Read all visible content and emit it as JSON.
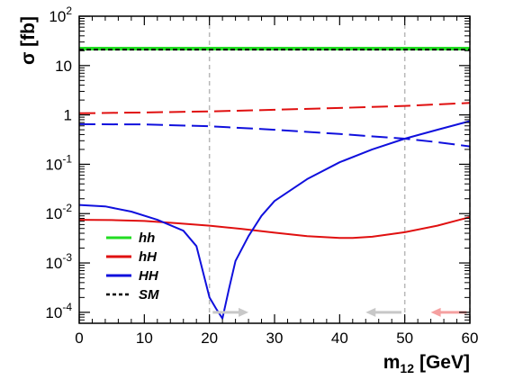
{
  "chart_data": {
    "type": "line",
    "xlabel": "m",
    "xlabel_sub": "12",
    "xlabel_unit": "[GeV]",
    "ylabel": "σ [fb]",
    "xlim": [
      0,
      60
    ],
    "ylim": [
      6e-05,
      100
    ],
    "yscale": "log",
    "x_ticks": [
      0,
      10,
      20,
      30,
      40,
      50,
      60
    ],
    "y_ticks": [
      {
        "value": 0.0001,
        "base": "10",
        "exp": "-4"
      },
      {
        "value": 0.001,
        "base": "10",
        "exp": "-3"
      },
      {
        "value": 0.01,
        "base": "10",
        "exp": "-2"
      },
      {
        "value": 0.1,
        "base": "10",
        "exp": "-1"
      },
      {
        "value": 1,
        "base": "1",
        "exp": ""
      },
      {
        "value": 10,
        "base": "10",
        "exp": ""
      },
      {
        "value": 100,
        "base": "10",
        "exp": "2"
      }
    ],
    "vertical_lines": [
      20,
      50,
      60
    ],
    "arrows": [
      {
        "x_from": 20.5,
        "x_to": 26,
        "y": 0.0001,
        "color": "#c8c8c8"
      },
      {
        "x_from": 49.5,
        "x_to": 44,
        "y": 0.0001,
        "color": "#c8c8c8"
      },
      {
        "x_from": 59.5,
        "x_to": 54,
        "y": 0.0001,
        "color": "#f5a0a0"
      }
    ],
    "legend_position": "bottom-left",
    "series": [
      {
        "name": "hh",
        "color": "#22dd22",
        "dash": "solid",
        "width": 4,
        "x": [
          0,
          60
        ],
        "y": [
          22,
          22
        ]
      },
      {
        "name": "hH",
        "color": "#e01010",
        "dash": "solid",
        "width": 2,
        "x": [
          0,
          5,
          10,
          15,
          20,
          25,
          30,
          35,
          40,
          42,
          45,
          50,
          55,
          60
        ],
        "y": [
          0.0075,
          0.0074,
          0.0071,
          0.0064,
          0.0057,
          0.0049,
          0.0041,
          0.0035,
          0.0032,
          0.0032,
          0.0034,
          0.0042,
          0.0057,
          0.0085
        ]
      },
      {
        "name": "hH",
        "color": "#e01010",
        "dash": "dashed",
        "width": 2,
        "x": [
          0,
          10,
          20,
          30,
          40,
          50,
          60
        ],
        "y": [
          1.08,
          1.12,
          1.18,
          1.27,
          1.38,
          1.52,
          1.75
        ]
      },
      {
        "name": "HH",
        "color": "#1010dd",
        "dash": "solid",
        "width": 2,
        "x": [
          0,
          4,
          8,
          12,
          16,
          18,
          20,
          21,
          22,
          23,
          24,
          26,
          28,
          30,
          35,
          40,
          45,
          50,
          55,
          60
        ],
        "y": [
          0.015,
          0.014,
          0.011,
          0.0075,
          0.0045,
          0.0022,
          0.0002,
          0.00012,
          7.5e-05,
          0.0003,
          0.0011,
          0.0035,
          0.009,
          0.018,
          0.05,
          0.11,
          0.2,
          0.33,
          0.5,
          0.75
        ]
      },
      {
        "name": "HH",
        "color": "#1010dd",
        "dash": "dashed",
        "width": 2,
        "x": [
          0,
          10,
          20,
          30,
          40,
          50,
          55,
          60
        ],
        "y": [
          0.65,
          0.64,
          0.59,
          0.5,
          0.41,
          0.33,
          0.28,
          0.23
        ]
      },
      {
        "name": "SM",
        "color": "#000000",
        "dash": "dotted",
        "width": 2,
        "x": [
          0,
          60
        ],
        "y": [
          21,
          21
        ]
      }
    ],
    "legend": [
      {
        "label": "hh",
        "color": "#22dd22",
        "dash": "solid"
      },
      {
        "label": "hH",
        "color": "#e01010",
        "dash": "solid"
      },
      {
        "label": "HH",
        "color": "#1010dd",
        "dash": "solid"
      },
      {
        "label": "SM",
        "color": "#000000",
        "dash": "dotted"
      }
    ]
  }
}
